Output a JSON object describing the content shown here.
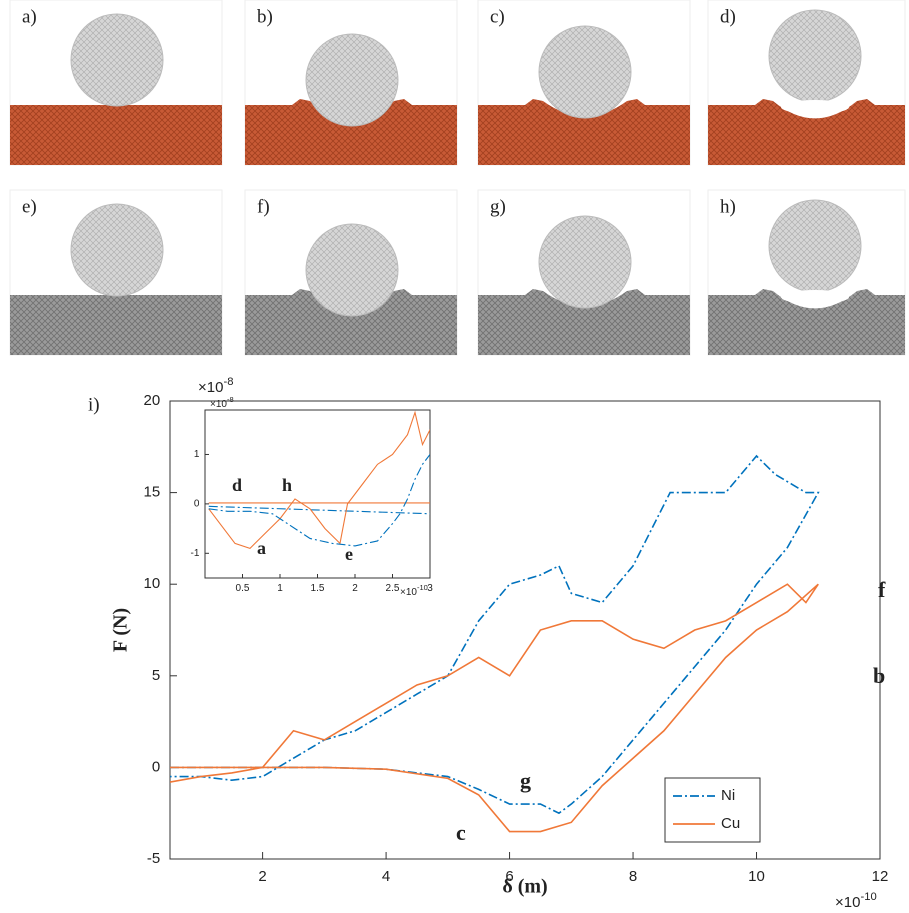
{
  "panels": [
    {
      "label": "a)"
    },
    {
      "label": "b)"
    },
    {
      "label": "c)"
    },
    {
      "label": "d)"
    },
    {
      "label": "e)"
    },
    {
      "label": "f)"
    },
    {
      "label": "g)"
    },
    {
      "label": "h)"
    }
  ],
  "chart_data": {
    "type": "line",
    "label": "i)",
    "xlabel": "δ (m)",
    "ylabel": "F (N)",
    "x_multiplier": "×10",
    "x_multiplier_exp": "-10",
    "y_multiplier": "×10",
    "y_multiplier_exp": "-8",
    "xlim": [
      0.5,
      12
    ],
    "ylim": [
      -5,
      20
    ],
    "xticks": [
      2,
      4,
      6,
      8,
      10,
      12
    ],
    "yticks": [
      -5,
      0,
      5,
      10,
      15,
      20
    ],
    "series": [
      {
        "name": "Ni",
        "color": "#0072bd",
        "dash": "dashdot",
        "x": [
          0.5,
          1,
          2,
          3,
          4,
          5,
          5.5,
          6,
          6.5,
          6.8,
          7,
          7.5,
          8,
          8.5,
          9,
          9.5,
          10,
          10.5,
          11,
          10.8,
          10.3,
          10,
          9.5,
          9,
          8.6,
          8,
          7.5,
          7,
          6.8,
          6.5,
          6,
          5.5,
          5,
          4.5,
          4,
          3.5,
          3,
          2.5,
          2,
          1.5,
          1,
          0.5
        ],
        "values": [
          0,
          0,
          0,
          0,
          -0.1,
          -0.5,
          -1.2,
          -2,
          -2,
          -2.5,
          -2,
          -0.5,
          1.5,
          3.5,
          5.5,
          7.5,
          10,
          12,
          15,
          15,
          16,
          17,
          15,
          15,
          15,
          11,
          9,
          9.5,
          11,
          10.5,
          10,
          8,
          5,
          4,
          3,
          2,
          1.5,
          0.5,
          -0.5,
          -0.7,
          -0.5,
          -0.5
        ]
      },
      {
        "name": "Cu",
        "color": "#f07838",
        "dash": "solid",
        "x": [
          0.5,
          1,
          2,
          3,
          4,
          5,
          5.5,
          6,
          6.5,
          7,
          7.5,
          8,
          8.5,
          9,
          9.5,
          10,
          10.5,
          11,
          10.8,
          10.5,
          10,
          9.5,
          9,
          8.5,
          8,
          7.5,
          7,
          6.5,
          6,
          5.5,
          5,
          4.5,
          4,
          3.5,
          3,
          2.5,
          2,
          1.5,
          1,
          0.5
        ],
        "values": [
          0,
          0,
          0,
          0,
          -0.1,
          -0.6,
          -1.5,
          -3.5,
          -3.5,
          -3,
          -1,
          0.5,
          2,
          4,
          6,
          7.5,
          8.5,
          10,
          9,
          10,
          9,
          8,
          7.5,
          6.5,
          7,
          8,
          8,
          7.5,
          5,
          6,
          5,
          4.5,
          3.5,
          2.5,
          1.5,
          2,
          0,
          -0.3,
          -0.5,
          -0.8
        ]
      }
    ],
    "legend": "lower right",
    "annotations": [
      {
        "text": "f",
        "color": "#1f5fa8"
      },
      {
        "text": "b",
        "color": "#e8702a"
      },
      {
        "text": "g",
        "color": "#1f5fa8"
      },
      {
        "text": "c",
        "color": "#e8702a"
      }
    ],
    "inset": {
      "type": "line",
      "x_multiplier": "×10",
      "x_multiplier_exp": "-10",
      "y_multiplier": "×10",
      "y_multiplier_exp": "-8",
      "xlim": [
        0,
        3
      ],
      "ylim": [
        -1.5,
        1.9
      ],
      "xticks": [
        0.5,
        1,
        1.5,
        2,
        2.5,
        3
      ],
      "yticks": [
        -1,
        0,
        1
      ],
      "series": [
        {
          "color": "#f07838",
          "dash": "solid",
          "x": [
            0.05,
            3
          ],
          "values": [
            0.02,
            0.02
          ]
        },
        {
          "color": "#0072bd",
          "dash": "dashdot",
          "x": [
            0.05,
            3
          ],
          "values": [
            -0.05,
            -0.2
          ]
        },
        {
          "color": "#f07838",
          "dash": "solid",
          "x": [
            0.05,
            0.2,
            0.4,
            0.6,
            0.8,
            1.0,
            1.2,
            1.4,
            1.6,
            1.8,
            1.9,
            2.1,
            2.3,
            2.5,
            2.7,
            2.8,
            2.9,
            3.0
          ],
          "values": [
            -0.1,
            -0.4,
            -0.8,
            -0.9,
            -0.6,
            -0.3,
            0.1,
            -0.1,
            -0.5,
            -0.8,
            0,
            0.4,
            0.8,
            1.0,
            1.4,
            1.85,
            1.2,
            1.5
          ]
        },
        {
          "color": "#0072bd",
          "dash": "dashdot",
          "x": [
            0.05,
            0.3,
            0.6,
            0.9,
            1.1,
            1.4,
            1.7,
            2.0,
            2.3,
            2.5,
            2.6,
            2.7,
            2.8,
            2.9,
            3.0
          ],
          "values": [
            -0.1,
            -0.15,
            -0.15,
            -0.2,
            -0.4,
            -0.7,
            -0.8,
            -0.85,
            -0.75,
            -0.4,
            -0.2,
            0.1,
            0.5,
            0.8,
            1.0
          ]
        }
      ],
      "annotations": [
        {
          "text": "d",
          "color": "#e8702a"
        },
        {
          "text": "h",
          "color": "#1f5fa8"
        },
        {
          "text": "a",
          "color": "#e8702a"
        },
        {
          "text": "e",
          "color": "#1f5fa8"
        }
      ]
    }
  }
}
